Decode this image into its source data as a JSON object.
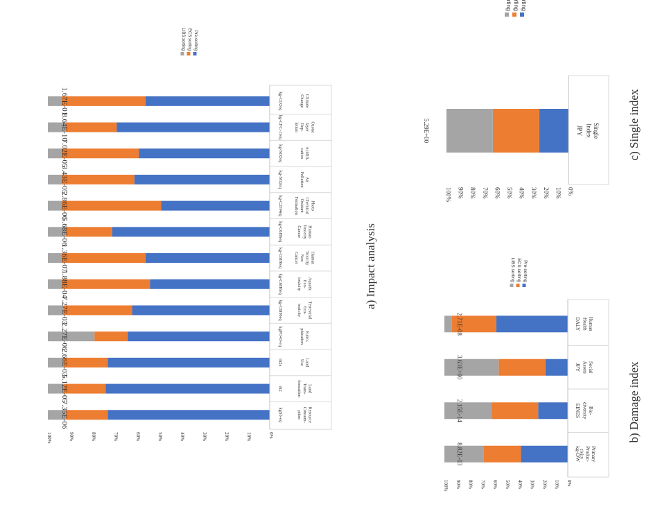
{
  "colors": {
    "libs": "#a5a5a5",
    "ecs": "#ed7d31",
    "pre": "#4472c4"
  },
  "panel_labels": {
    "a": "a)  Impact analysis",
    "b": "b) Damage index",
    "c": "c) Single index"
  },
  "chart_data": [
    {
      "id": "impact",
      "type": "bar",
      "stacked": "percent",
      "title": "",
      "ylim": [
        0,
        100
      ],
      "percent_ticks": [
        "0%",
        "10%",
        "20%",
        "30%",
        "40%",
        "50%",
        "60%",
        "70%",
        "80%",
        "90%",
        "100%"
      ],
      "legend": [
        "LIBS sorting",
        "ECS sorting",
        "Pre-sorting"
      ],
      "categories": [
        "Climate Change",
        "Ozone layer Dep- letion",
        "Acidifi- cation",
        "Air Pollution",
        "Photo Chemical Oxidant Formation",
        "Human Toxicity Cancer",
        "Human Toxicity Non Cancer",
        "Aquatic Eco- toxicity",
        "Terrestrial Eco- toxicity",
        "Eutro- phication",
        "Land Use",
        "Land Trans- formation",
        "Resource Consum- ption"
      ],
      "units": [
        "kg-CO2eq",
        "kg-CFC-11eq",
        "kg-SO2eq",
        "kg-SO2eq",
        "kg-C2H4eq",
        "kg-C6H6eq",
        "kg-C6H6eq",
        "kg-C6H6eq",
        "kg-C6H6eq",
        "kgPO43-eq",
        "m2a",
        "m2",
        "kgSb-eq"
      ],
      "totals": [
        "1.67E-01",
        "8.64E-10",
        "7.02E-05",
        "3.43E-05",
        "2.86E-06",
        "5.68E-06",
        "1.36E-07",
        "1.88E-04",
        "7.27E-03",
        "2.27E-06",
        "2.66E-03",
        "5.12E-05",
        "7.35E-06"
      ],
      "series": [
        {
          "name": "Pre-sorting",
          "values": [
            56,
            69,
            59,
            61,
            49,
            71,
            56,
            54,
            62,
            64,
            73,
            74,
            73
          ]
        },
        {
          "name": "ECS sorting",
          "values": [
            38,
            23,
            35,
            33,
            45,
            21,
            38,
            40,
            31,
            15,
            20,
            19,
            19
          ]
        },
        {
          "name": "LIBS sorting",
          "values": [
            6,
            8,
            6,
            6,
            6,
            8,
            6,
            6,
            7,
            21,
            7,
            7,
            8
          ]
        }
      ]
    },
    {
      "id": "damage",
      "type": "bar",
      "stacked": "percent",
      "title": "",
      "ylim": [
        0,
        100
      ],
      "percent_ticks": [
        "0%",
        "10%",
        "20%",
        "30%",
        "40%",
        "50%",
        "60%",
        "70%",
        "80%",
        "90%",
        "100%"
      ],
      "legend": [
        "LIBS sorting",
        "ECS sorting",
        "Pre-sorting"
      ],
      "categories": [
        "Human Health",
        "Social Assets",
        "Bio- diversity",
        "Primary Produc- tivity"
      ],
      "units": [
        "DALY",
        "JPY",
        "EINES",
        "kg-DW"
      ],
      "totals": [
        "2.71E-08",
        "3.63E+00",
        "2.15E-14",
        "8.82E-03"
      ],
      "series": [
        {
          "name": "Pre-sorting",
          "values": [
            58,
            18,
            24,
            38
          ]
        },
        {
          "name": "ECS sorting",
          "values": [
            36,
            38,
            38,
            30
          ]
        },
        {
          "name": "LIBS sorting",
          "values": [
            6,
            44,
            38,
            32
          ]
        }
      ]
    },
    {
      "id": "single",
      "type": "bar",
      "stacked": "percent",
      "title": "",
      "ylim": [
        0,
        100
      ],
      "percent_ticks": [
        "0%",
        "10%",
        "20%",
        "30%",
        "40%",
        "50%",
        "60%",
        "70%",
        "80%",
        "90%",
        "100%"
      ],
      "legend": [
        "LIBS sorting",
        "ECS sorting",
        "Pre-sorting"
      ],
      "categories": [
        "Single Index"
      ],
      "units": [
        "JPY"
      ],
      "totals": [
        "5.29E+00"
      ],
      "series": [
        {
          "name": "Pre-sorting",
          "values": [
            24
          ]
        },
        {
          "name": "ECS sorting",
          "values": [
            38
          ]
        },
        {
          "name": "LIBS sorting",
          "values": [
            38
          ]
        }
      ]
    }
  ]
}
